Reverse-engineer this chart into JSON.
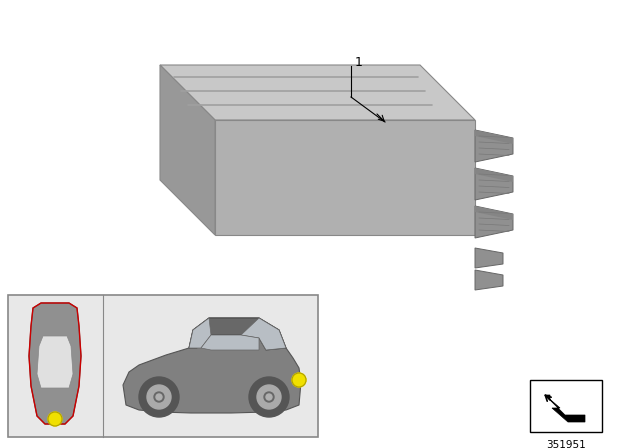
{
  "bg_color": "#ffffff",
  "part_number": "351951",
  "module_top_color": "#c8c8c8",
  "module_front_color": "#b0b0b0",
  "module_right_color": "#989898",
  "connector_color": "#909090",
  "connector_dark": "#787878",
  "groove_color": "#a0a0a0",
  "car_panel_bg": "#e8e8e8",
  "car_panel_border": "#888888",
  "car_body_color": "#888888",
  "car_roof_color": "#707070",
  "car_window_color": "#b8bec4",
  "car_wheel_outer": "#555555",
  "car_wheel_rim": "#aaaaaa",
  "car_wheel_hub": "#888888",
  "yellow_dot": "#f0e000",
  "label_color": "#000000",
  "box_border": "#000000"
}
